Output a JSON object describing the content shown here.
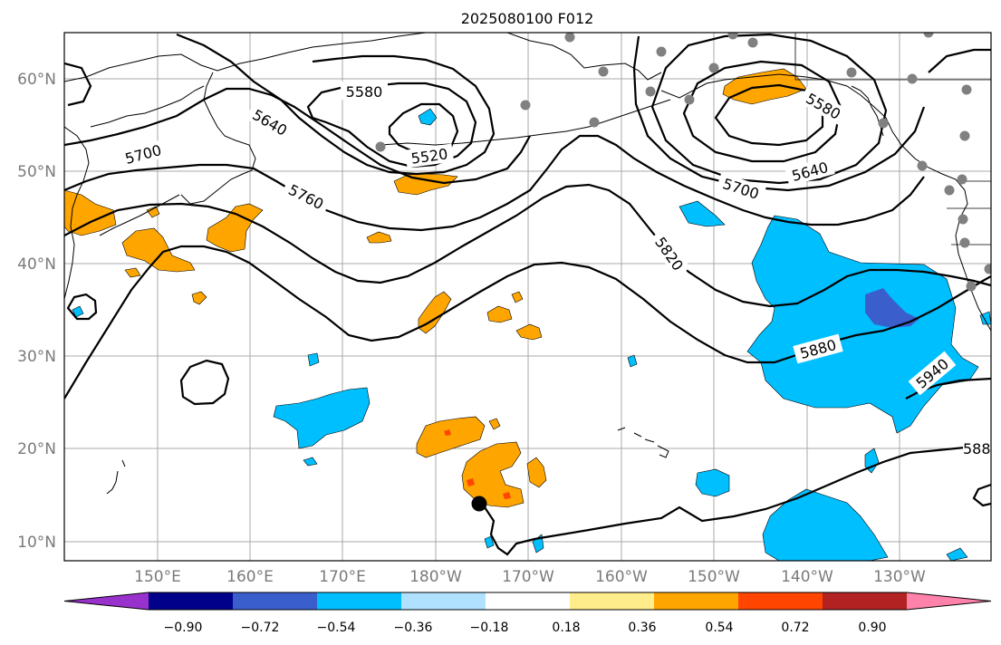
{
  "title": "2025080100 F012",
  "lat_labels": [
    "60°N",
    "50°N",
    "40°N",
    "30°N",
    "20°N",
    "10°N"
  ],
  "lon_labels": [
    "150°E",
    "160°E",
    "170°E",
    "180°W",
    "170°W",
    "160°W",
    "150°W",
    "140°W",
    "130°W"
  ],
  "contour_labels": [
    "5580",
    "5640",
    "5700",
    "5520",
    "5760",
    "5820",
    "5880",
    "5940",
    "588",
    "5580",
    "5640",
    "5700"
  ],
  "colorbar": {
    "tick_labels": [
      "−0.90",
      "−0.72",
      "−0.54",
      "−0.36",
      "−0.18",
      "0.18",
      "0.36",
      "0.54",
      "0.72",
      "0.90"
    ],
    "colors": [
      "#9932cc",
      "#00008b",
      "#3a5fcd",
      "#00bfff",
      "#b0e2ff",
      "#ffffff",
      "#ffec8b",
      "#ffa500",
      "#ff4500",
      "#b22222",
      "#ff82ab"
    ]
  },
  "field_colors": {
    "positive": "#ffa500",
    "positive_strong": "#ff4500",
    "negative": "#00bfff",
    "negative_strong": "#3a5fcd"
  },
  "markers": {
    "storm_center_color": "#000000",
    "station_color": "#808080"
  }
}
